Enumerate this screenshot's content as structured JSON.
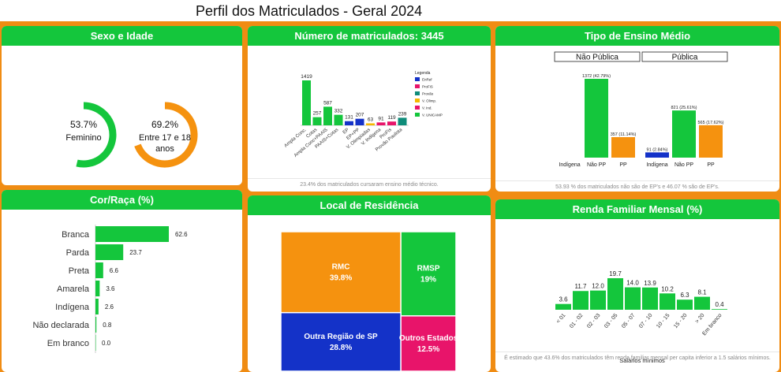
{
  "title": "Perfil dos Matriculados - Geral 2024",
  "panels": {
    "sexo": {
      "header": "Sexo e Idade"
    },
    "numero": {
      "header": "Número de matriculados: 3445",
      "foot": "23.4% dos matriculados cursaram ensino médio técnico."
    },
    "tipo": {
      "header": "Tipo de Ensino Médio",
      "foot": "53.93 % dos matriculados não são de EP's e 46.07 % são de EP's."
    },
    "cor": {
      "header": "Cor/Raça (%)"
    },
    "local": {
      "header": "Local de Residência"
    },
    "renda": {
      "header": "Renda Familiar Mensal (%)",
      "foot": "É estimado que 43.6% dos matriculados têm renda familiar mensal per capita inferior a 1.5 salários mínimos."
    }
  },
  "colors": {
    "green": "#14c63c",
    "orange": "#f5920f",
    "blue": "#1432c8",
    "magenta": "#e8146a",
    "grey": "#dddddd"
  },
  "chart_data": [
    {
      "type": "pie",
      "title": "Sexo e Idade",
      "gauges": [
        {
          "value": 53.7,
          "value_label": "53.7%",
          "label": "Feminino",
          "color": "#14c63c"
        },
        {
          "value": 69.2,
          "value_label": "69.2%",
          "label": "Entre 17 e 18 anos",
          "color": "#f5920f"
        }
      ]
    },
    {
      "type": "bar",
      "title": "Número de matriculados: 3445",
      "categories": [
        "Ampla Conc.",
        "Cotas",
        "Ampla Conc+PAAIS",
        "PAAIS+Cotas",
        "EP",
        "EP+PP",
        "V. Olimpíadas",
        "V. Indígena",
        "ProFis",
        "Provão Paulista"
      ],
      "values": [
        1419,
        257,
        587,
        332,
        131,
        207,
        63,
        91,
        119,
        239
      ],
      "colors": [
        "#14c63c",
        "#14c63c",
        "#14c63c",
        "#14c63c",
        "#1432c8",
        "#1432c8",
        "#f5b800",
        "#e8146a",
        "#e8146a",
        "#0f8c7a"
      ],
      "legend_title": "Legenda",
      "legend": [
        {
          "label": "EnRef",
          "color": "#1432c8"
        },
        {
          "label": "ProFiS",
          "color": "#e8146a"
        },
        {
          "label": "Provão",
          "color": "#0f8c7a"
        },
        {
          "label": "V. Olimp.",
          "color": "#f5b800"
        },
        {
          "label": "V. Ind.",
          "color": "#e8146a"
        },
        {
          "label": "V. UNICAMP",
          "color": "#14c63c"
        }
      ]
    },
    {
      "type": "bar",
      "title": "Tipo de Ensino Médio",
      "groups": [
        {
          "name": "Não Pública",
          "bars": [
            {
              "label": "Indígena",
              "value": 0,
              "value_label": "",
              "color": "#1432c8"
            },
            {
              "label": "Não PP",
              "value": 1372,
              "value_label": "1372 (42.79%)",
              "color": "#14c63c"
            },
            {
              "label": "PP",
              "value": 357,
              "value_label": "357 (11.14%)",
              "color": "#f5920f"
            }
          ]
        },
        {
          "name": "Pública",
          "bars": [
            {
              "label": "Indígena",
              "value": 91,
              "value_label": "91 (2.84%)",
              "color": "#1432c8"
            },
            {
              "label": "Não PP",
              "value": 821,
              "value_label": "821 (25.61%)",
              "color": "#14c63c"
            },
            {
              "label": "PP",
              "value": 565,
              "value_label": "565 (17.62%)",
              "color": "#f5920f"
            }
          ]
        }
      ]
    },
    {
      "type": "bar",
      "title": "Cor/Raça (%)",
      "categories": [
        "Branca",
        "Parda",
        "Preta",
        "Amarela",
        "Indígena",
        "Não declarada",
        "Em branco"
      ],
      "values": [
        62.6,
        23.7,
        6.6,
        3.6,
        2.6,
        0.8,
        0.0
      ],
      "value_labels": [
        "62.6",
        "23.7",
        "6.6",
        "3.6",
        "2.6",
        "0.8",
        "0.0"
      ],
      "orientation": "horizontal"
    },
    {
      "type": "heatmap",
      "title": "Local de Residência",
      "cells": [
        {
          "name": "RMC",
          "value": 39.8,
          "value_label": "39.8%",
          "color": "#f5920f"
        },
        {
          "name": "RMSP",
          "value": 19,
          "value_label": "19%",
          "color": "#14c63c"
        },
        {
          "name": "Outra Região de SP",
          "value": 28.8,
          "value_label": "28.8%",
          "color": "#1432c8"
        },
        {
          "name": "Outros Estados",
          "value": 12.5,
          "value_label": "12.5%",
          "color": "#e8146a"
        }
      ]
    },
    {
      "type": "bar",
      "title": "Renda Familiar Mensal (%)",
      "categories": [
        "< 01",
        "01 - 02",
        "02 - 03",
        "03 - 05",
        "05 - 07",
        "07 - 10",
        "10 - 15",
        "15 - 20",
        "> 20",
        "Em branco"
      ],
      "values": [
        3.6,
        11.7,
        12.0,
        19.7,
        14.0,
        13.9,
        10.2,
        6.3,
        8.1,
        0.4
      ],
      "value_labels": [
        "3.6",
        "11.7",
        "12.0",
        "19.7",
        "14.0",
        "13.9",
        "10.2",
        "6.3",
        "8.1",
        "0.4"
      ],
      "xlabel": "Salários mínimos"
    }
  ]
}
